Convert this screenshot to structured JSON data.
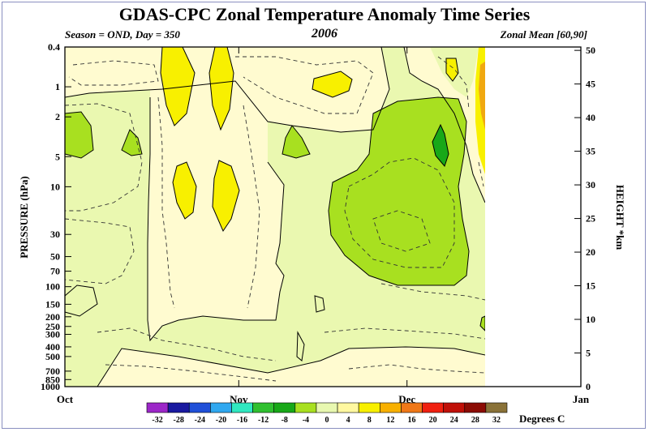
{
  "title": "GDAS-CPC Zonal Temperature Anomaly Time Series",
  "season_label": "Season = OND, Day = 350",
  "year_label": "2006",
  "region_label": "Zonal Mean [60,90]",
  "chart_data": {
    "type": "heatmap",
    "xlabel": "",
    "ylabel": "PRESSURE (hPa)",
    "ylabel_right": "HEIGHT *km",
    "x_ticks": [
      "Oct",
      "Nov",
      "Dec",
      "Jan"
    ],
    "x_days": [
      0,
      31,
      61,
      92
    ],
    "data_end_day": 77,
    "y_ticks": [
      "0.4",
      "1",
      "2",
      "5",
      "10",
      "30",
      "50",
      "70",
      "100",
      "150",
      "200",
      "250",
      "300",
      "400",
      "500",
      "700",
      "850",
      "1000"
    ],
    "y_ticks_hpa": [
      0.4,
      1,
      2,
      5,
      10,
      30,
      50,
      70,
      100,
      150,
      200,
      250,
      300,
      400,
      500,
      700,
      850,
      1000
    ],
    "ylim_hpa": [
      1000,
      0.4
    ],
    "height_ticks": [
      "0",
      "5",
      "10",
      "15",
      "20",
      "25",
      "30",
      "35",
      "40",
      "45",
      "50"
    ],
    "height_values_km": [
      0,
      5,
      10,
      15,
      20,
      25,
      30,
      35,
      40,
      45,
      50
    ],
    "colorbar": {
      "label": "Degrees C",
      "levels": [
        "-32",
        "-28",
        "-24",
        "-20",
        "-16",
        "-12",
        "-8",
        "-4",
        "0",
        "4",
        "8",
        "12",
        "16",
        "20",
        "24",
        "28",
        "32"
      ],
      "colors": [
        "#9c27c8",
        "#1a1aa0",
        "#2050d8",
        "#30a8f0",
        "#30e8c0",
        "#30c030",
        "#18a818",
        "#a8e020",
        "#e8f8b0",
        "#fff8a0",
        "#f8f000",
        "#f8b000",
        "#f07818",
        "#f02010",
        "#c01008",
        "#8c0c04",
        "#8a7238"
      ]
    },
    "shading_colors": {
      "anomaly_0_to_4": "#fffbd0",
      "anomaly_neg4_to_0": "#eaf8b0",
      "anomaly_neg8_to_neg4": "#a8e020",
      "anomaly_neg12_to_neg8": "#18a818",
      "anomaly_4_to_8": "#f8f000",
      "anomaly_8_to_12": "#f0a810"
    },
    "grid": false,
    "legend": "bottom"
  }
}
